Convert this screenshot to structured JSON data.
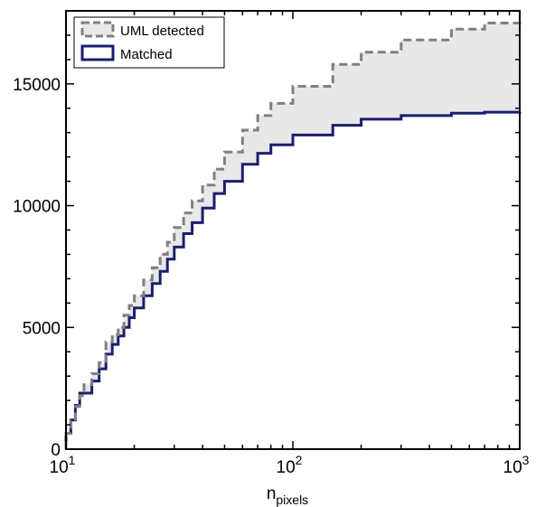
{
  "chart_data": {
    "type": "step",
    "xscale": "log",
    "xlim": [
      10,
      1000
    ],
    "ylim": [
      0,
      18000
    ],
    "xlabel": {
      "base": "n",
      "subscript": "pixels"
    },
    "ylabel": "",
    "x_ticks": [
      {
        "value": 10,
        "base": "10",
        "exp": "1"
      },
      {
        "value": 100,
        "base": "10",
        "exp": "2"
      },
      {
        "value": 1000,
        "base": "10",
        "exp": "3"
      }
    ],
    "y_ticks": [
      {
        "value": 0,
        "label": "0"
      },
      {
        "value": 5000,
        "label": "5000"
      },
      {
        "value": 10000,
        "label": "10000"
      },
      {
        "value": 15000,
        "label": "15000"
      }
    ],
    "legend": {
      "position": "top-left",
      "entries": [
        "UML detected",
        "Matched"
      ]
    },
    "fill_between": {
      "color": "#e8e8e8",
      "series": [
        "UML detected",
        "Matched"
      ]
    },
    "series": [
      {
        "name": "UML detected",
        "color": "#808080",
        "style": "dashed",
        "x": [
          10,
          10.5,
          11,
          11.5,
          12,
          13,
          14,
          15,
          16,
          17,
          18,
          19,
          20,
          22,
          24,
          26,
          28,
          30,
          33,
          36,
          40,
          45,
          50,
          60,
          70,
          80,
          100,
          150,
          200,
          300,
          500,
          700,
          1000
        ],
        "y": [
          650,
          1150,
          1750,
          2200,
          2650,
          3100,
          3550,
          4400,
          4700,
          5000,
          5500,
          5900,
          6300,
          6950,
          7450,
          8000,
          8500,
          9100,
          9700,
          10200,
          10850,
          11500,
          12200,
          13100,
          13700,
          14200,
          14900,
          15800,
          16300,
          16800,
          17250,
          17500,
          17700
        ]
      },
      {
        "name": "Matched",
        "color": "#1a1f6e",
        "style": "solid",
        "x": [
          10,
          10.5,
          11,
          11.5,
          12,
          13,
          14,
          15,
          16,
          17,
          18,
          19,
          20,
          22,
          24,
          26,
          28,
          30,
          33,
          36,
          40,
          45,
          50,
          60,
          70,
          80,
          100,
          150,
          200,
          300,
          500,
          700,
          1000
        ],
        "y": [
          650,
          1200,
          1800,
          2300,
          2300,
          2800,
          3300,
          3900,
          4300,
          4650,
          5000,
          5400,
          5800,
          6300,
          6800,
          7300,
          7800,
          8300,
          8850,
          9300,
          9900,
          10500,
          11000,
          11700,
          12150,
          12500,
          12900,
          13300,
          13550,
          13700,
          13800,
          13840,
          13850
        ]
      }
    ]
  }
}
